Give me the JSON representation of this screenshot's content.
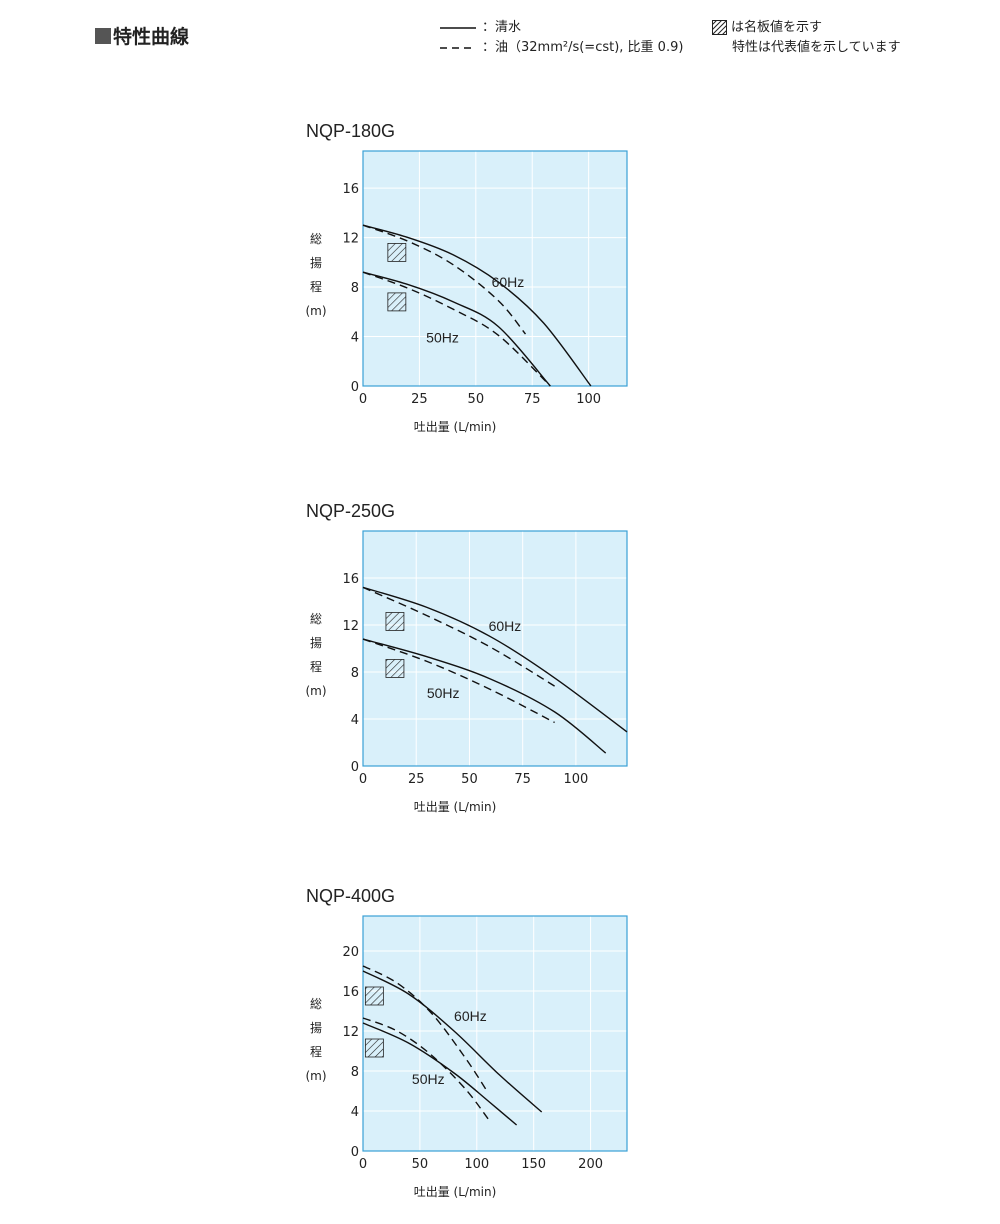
{
  "header": {
    "section_title": "特性曲線",
    "legend_solid": "：清水",
    "legend_dashed": "：油（32mm²/s(=cst), 比重 0.9)",
    "note_line1": "は名板値を示す",
    "note_line2": "特性は代表値を示しています"
  },
  "colors": {
    "plot_bg": "#d9f0fa",
    "plot_border": "#3aa0d6",
    "grid": "#ffffff",
    "curve": "#111111"
  },
  "chart_data": [
    {
      "type": "line",
      "title": "NQP-180G",
      "xlabel": "吐出量 (L/min)",
      "ylabel": [
        "総",
        "揚",
        "程",
        "(m)"
      ],
      "xlim": [
        0,
        117
      ],
      "ylim": [
        0,
        19
      ],
      "xticks": [
        0,
        25,
        50,
        75,
        100
      ],
      "yticks": [
        0,
        4,
        8,
        12,
        16
      ],
      "series": [
        {
          "label": "60Hz",
          "style": "solid",
          "x": [
            0,
            20,
            40,
            60,
            80,
            101
          ],
          "y": [
            13.0,
            12.0,
            10.6,
            8.4,
            5.1,
            0
          ]
        },
        {
          "label": "60Hz",
          "style": "dashed",
          "x": [
            0,
            20,
            40,
            60,
            72
          ],
          "y": [
            13.0,
            11.7,
            9.8,
            6.9,
            4.2
          ]
        },
        {
          "label": "50Hz",
          "style": "solid",
          "x": [
            0,
            20,
            40,
            60,
            83
          ],
          "y": [
            9.2,
            8.2,
            6.8,
            4.8,
            0
          ]
        },
        {
          "label": "50Hz",
          "style": "dashed",
          "x": [
            0,
            20,
            40,
            60,
            83
          ],
          "y": [
            9.2,
            7.9,
            6.2,
            4.1,
            0
          ]
        }
      ],
      "rated": [
        {
          "x": 15,
          "y": 10.8
        },
        {
          "x": 15,
          "y": 6.8
        }
      ],
      "labels": [
        {
          "text": "60Hz",
          "x": 57,
          "y": 8
        },
        {
          "text": "50Hz",
          "x": 28,
          "y": 3.5
        }
      ]
    },
    {
      "type": "line",
      "title": "NQP-250G",
      "xlabel": "吐出量 (L/min)",
      "ylabel": [
        "総",
        "揚",
        "程",
        "(m)"
      ],
      "xlim": [
        0,
        124
      ],
      "ylim": [
        0,
        20
      ],
      "xticks": [
        0,
        25,
        50,
        75,
        100
      ],
      "yticks": [
        0,
        4,
        8,
        12,
        16
      ],
      "series": [
        {
          "label": "60Hz",
          "style": "solid",
          "x": [
            0,
            30,
            60,
            90,
            124
          ],
          "y": [
            15.2,
            13.5,
            11.0,
            7.5,
            2.9
          ]
        },
        {
          "label": "60Hz",
          "style": "dashed",
          "x": [
            0,
            30,
            60,
            90
          ],
          "y": [
            15.2,
            12.8,
            10.1,
            6.8
          ]
        },
        {
          "label": "50Hz",
          "style": "solid",
          "x": [
            0,
            30,
            60,
            90,
            114
          ],
          "y": [
            10.8,
            9.3,
            7.4,
            4.6,
            1.1
          ]
        },
        {
          "label": "50Hz",
          "style": "dashed",
          "x": [
            0,
            30,
            60,
            90
          ],
          "y": [
            10.8,
            8.9,
            6.5,
            3.7
          ]
        }
      ],
      "rated": [
        {
          "x": 15,
          "y": 12.3
        },
        {
          "x": 15,
          "y": 8.3
        }
      ],
      "labels": [
        {
          "text": "60Hz",
          "x": 59,
          "y": 11.5
        },
        {
          "text": "50Hz",
          "x": 30,
          "y": 5.8
        }
      ]
    },
    {
      "type": "line",
      "title": "NQP-400G",
      "xlabel": "吐出量 (L/min)",
      "ylabel": [
        "総",
        "揚",
        "程",
        "(m)"
      ],
      "xlim": [
        0,
        232
      ],
      "ylim": [
        0,
        23.5
      ],
      "xticks": [
        0,
        50,
        100,
        150,
        200
      ],
      "yticks": [
        0,
        4,
        8,
        12,
        16,
        20
      ],
      "series": [
        {
          "label": "60Hz",
          "style": "solid",
          "x": [
            0,
            40,
            80,
            120,
            157
          ],
          "y": [
            18.0,
            15.7,
            12.0,
            7.6,
            3.9
          ]
        },
        {
          "label": "60Hz",
          "style": "dashed",
          "x": [
            0,
            30,
            60,
            90,
            110
          ],
          "y": [
            18.5,
            16.8,
            13.8,
            9.3,
            5.8
          ]
        },
        {
          "label": "50Hz",
          "style": "solid",
          "x": [
            0,
            40,
            80,
            110,
            135
          ],
          "y": [
            12.8,
            10.8,
            7.8,
            5.0,
            2.6
          ]
        },
        {
          "label": "50Hz",
          "style": "dashed",
          "x": [
            0,
            30,
            60,
            90,
            110
          ],
          "y": [
            13.3,
            12.0,
            9.6,
            6.2,
            3.2
          ]
        }
      ],
      "rated": [
        {
          "x": 10,
          "y": 15.5
        },
        {
          "x": 10,
          "y": 10.3
        }
      ],
      "labels": [
        {
          "text": "60Hz",
          "x": 80,
          "y": 13
        },
        {
          "text": "50Hz",
          "x": 43,
          "y": 6.7
        }
      ]
    }
  ]
}
